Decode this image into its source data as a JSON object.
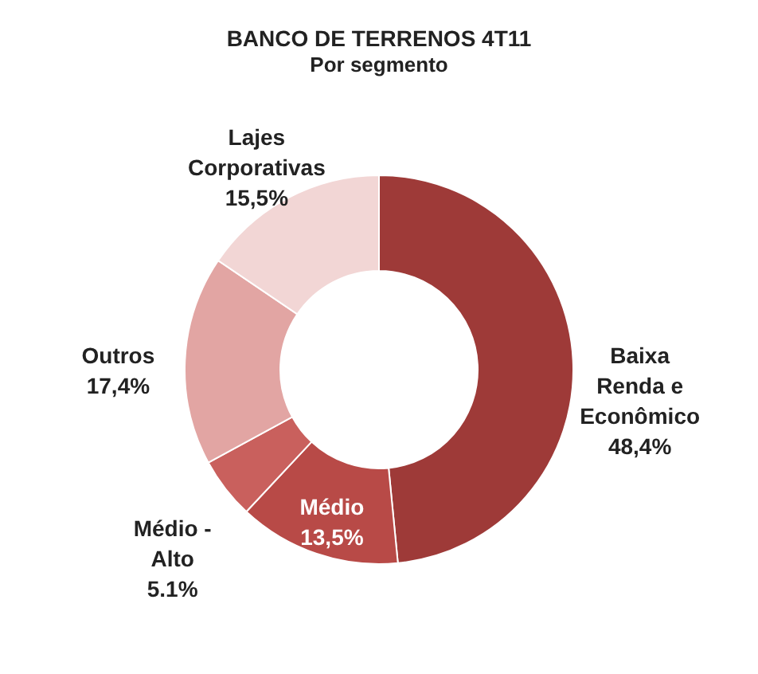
{
  "chart_data": {
    "type": "donut",
    "title": "BANCO DE TERRENOS 4T11",
    "subtitle": "Por segmento",
    "categories": [
      "Baixa Renda e Econômico",
      "Médio",
      "Médio - Alto",
      "Outros",
      "Lajes Corporativas"
    ],
    "values": [
      48.4,
      13.5,
      5.1,
      17.4,
      15.5
    ],
    "value_labels": [
      "48,4%",
      "13,5%",
      "5.1%",
      "17,4%",
      "15,5%"
    ],
    "colors": [
      "#9e3a38",
      "#b84a47",
      "#c9605d",
      "#e2a5a3",
      "#f2d6d5"
    ],
    "legend": false
  }
}
